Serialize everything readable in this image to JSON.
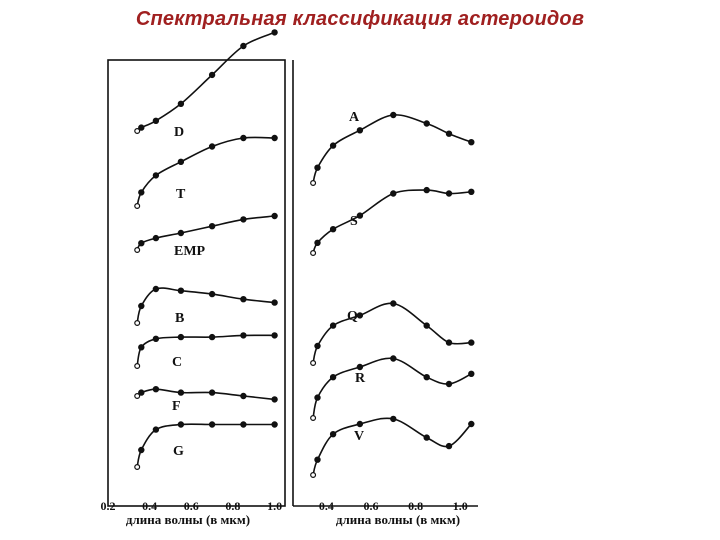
{
  "title": "Спектральная классификация астероидов",
  "colors": {
    "title": "#a02020",
    "ink": "#111111"
  },
  "chart_data": [
    {
      "type": "line",
      "panel": "left",
      "xlim": [
        0.2,
        1.05
      ],
      "x_ticks": [
        "0.2",
        "0.4",
        "0.6",
        "0.8",
        "1.0"
      ],
      "xlabel": "длина волны (в мкм)",
      "series": [
        {
          "name": "D",
          "x": [
            0.34,
            0.36,
            0.43,
            0.55,
            0.7,
            0.85,
            1.0
          ],
          "y": [
            0.0,
            0.02,
            0.06,
            0.16,
            0.33,
            0.5,
            0.58
          ]
        },
        {
          "name": "T",
          "x": [
            0.34,
            0.36,
            0.43,
            0.55,
            0.7,
            0.85,
            1.0
          ],
          "y": [
            0.0,
            0.08,
            0.18,
            0.26,
            0.35,
            0.4,
            0.4
          ]
        },
        {
          "name": "EMP",
          "x": [
            0.34,
            0.36,
            0.43,
            0.55,
            0.7,
            0.85,
            1.0
          ],
          "y": [
            0.0,
            0.04,
            0.07,
            0.1,
            0.14,
            0.18,
            0.2
          ]
        },
        {
          "name": "B",
          "x": [
            0.34,
            0.36,
            0.43,
            0.55,
            0.7,
            0.85,
            1.0
          ],
          "y": [
            0.0,
            0.1,
            0.2,
            0.19,
            0.17,
            0.14,
            0.12
          ]
        },
        {
          "name": "C",
          "x": [
            0.34,
            0.36,
            0.43,
            0.55,
            0.7,
            0.85,
            1.0
          ],
          "y": [
            0.0,
            0.11,
            0.16,
            0.17,
            0.17,
            0.18,
            0.18
          ]
        },
        {
          "name": "F",
          "x": [
            0.34,
            0.36,
            0.43,
            0.55,
            0.7,
            0.85,
            1.0
          ],
          "y": [
            0.0,
            0.02,
            0.04,
            0.02,
            0.02,
            0.0,
            -0.02
          ]
        },
        {
          "name": "G",
          "x": [
            0.34,
            0.36,
            0.43,
            0.55,
            0.7,
            0.85,
            1.0
          ],
          "y": [
            0.0,
            0.1,
            0.22,
            0.25,
            0.25,
            0.25,
            0.25
          ]
        }
      ]
    },
    {
      "type": "line",
      "panel": "right",
      "xlim": [
        0.25,
        1.08
      ],
      "x_ticks": [
        "0.4",
        "0.6",
        "0.8",
        "1.0"
      ],
      "xlabel": "длина волны (в мкм)",
      "series": [
        {
          "name": "A",
          "x": [
            0.34,
            0.36,
            0.43,
            0.55,
            0.7,
            0.85,
            0.95,
            1.05
          ],
          "y": [
            0.0,
            0.09,
            0.22,
            0.31,
            0.4,
            0.35,
            0.29,
            0.24
          ]
        },
        {
          "name": "S",
          "x": [
            0.34,
            0.36,
            0.43,
            0.55,
            0.7,
            0.85,
            0.95,
            1.05
          ],
          "y": [
            0.0,
            0.06,
            0.14,
            0.22,
            0.35,
            0.37,
            0.35,
            0.36
          ]
        },
        {
          "name": "Q",
          "x": [
            0.34,
            0.36,
            0.43,
            0.55,
            0.7,
            0.85,
            0.95,
            1.05
          ],
          "y": [
            0.0,
            0.1,
            0.22,
            0.28,
            0.35,
            0.22,
            0.12,
            0.12
          ]
        },
        {
          "name": "R",
          "x": [
            0.34,
            0.36,
            0.43,
            0.55,
            0.7,
            0.85,
            0.95,
            1.05
          ],
          "y": [
            0.0,
            0.12,
            0.24,
            0.3,
            0.35,
            0.24,
            0.2,
            0.26
          ]
        },
        {
          "name": "V",
          "x": [
            0.34,
            0.36,
            0.43,
            0.55,
            0.7,
            0.85,
            0.95,
            1.05
          ],
          "y": [
            0.0,
            0.09,
            0.24,
            0.3,
            0.33,
            0.22,
            0.17,
            0.3
          ]
        }
      ]
    }
  ]
}
